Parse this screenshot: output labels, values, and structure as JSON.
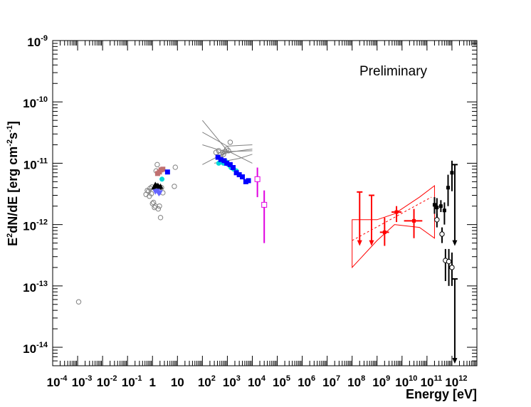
{
  "chart_data": {
    "type": "scatter",
    "title": "",
    "annotation": "Preliminary",
    "xlabel": "Energy [eV]",
    "ylabel_parts": {
      "a": "E",
      "b": "2",
      "c": "dN/dE [erg cm",
      "d": "-2",
      "e": "s",
      "f": "-1",
      "g": "]"
    },
    "xscale": "log",
    "yscale": "log",
    "xlim": [
      0.0001,
      10000000000000.0
    ],
    "ylim": [
      5e-15,
      1e-09
    ],
    "grid": false,
    "legend": "none",
    "x_ticks": [
      {
        "value": 0.0001,
        "base": "10",
        "exp": "-4"
      },
      {
        "value": 0.001,
        "base": "10",
        "exp": "-3"
      },
      {
        "value": 0.01,
        "base": "10",
        "exp": "-2"
      },
      {
        "value": 0.1,
        "base": "10",
        "exp": "-1"
      },
      {
        "value": 1,
        "base": "1",
        "exp": ""
      },
      {
        "value": 10,
        "base": "10",
        "exp": ""
      },
      {
        "value": 100,
        "base": "10",
        "exp": "2"
      },
      {
        "value": 1000,
        "base": "10",
        "exp": "3"
      },
      {
        "value": 10000,
        "base": "10",
        "exp": "4"
      },
      {
        "value": 100000,
        "base": "10",
        "exp": "5"
      },
      {
        "value": 1000000,
        "base": "10",
        "exp": "6"
      },
      {
        "value": 10000000,
        "base": "10",
        "exp": "7"
      },
      {
        "value": 100000000,
        "base": "10",
        "exp": "8"
      },
      {
        "value": 1000000000,
        "base": "10",
        "exp": "9"
      },
      {
        "value": 10000000000,
        "base": "10",
        "exp": "10"
      },
      {
        "value": 100000000000,
        "base": "10",
        "exp": "11"
      },
      {
        "value": 1000000000000,
        "base": "10",
        "exp": "12"
      }
    ],
    "y_ticks": [
      {
        "value": 1e-14,
        "base": "10",
        "exp": "-14"
      },
      {
        "value": 1e-13,
        "base": "10",
        "exp": "-13"
      },
      {
        "value": 1e-12,
        "base": "10",
        "exp": "-12"
      },
      {
        "value": 1e-11,
        "base": "10",
        "exp": "-11"
      },
      {
        "value": 1e-10,
        "base": "10",
        "exp": "-10"
      },
      {
        "value": 1e-09,
        "base": "10",
        "exp": "-9"
      }
    ],
    "colors": {
      "gray": "#808080",
      "black": "#000000",
      "red": "#ff0000",
      "blue": "#0000ff",
      "slateblue": "#6464ff",
      "rosybrown": "#c07070",
      "cyan": "#00d8d8",
      "magenta": "#e000e0"
    },
    "series": [
      {
        "color": "#808080",
        "marker": "open-circle",
        "points": [
          [
            0.0011,
            5.5e-14
          ],
          [
            0.55,
            3.1e-12
          ],
          [
            0.62,
            3.6e-12
          ],
          [
            0.7,
            3.5e-12
          ],
          [
            0.75,
            2.9e-12
          ],
          [
            0.8,
            3.9e-12
          ],
          [
            0.9,
            3.2e-12
          ],
          [
            0.95,
            4.1e-12
          ],
          [
            1.0,
            2.2e-12
          ],
          [
            1.1,
            2.3e-12
          ],
          [
            1.2,
            1.9e-12
          ],
          [
            1.3,
            2e-12
          ],
          [
            1.4,
            7.5e-12
          ],
          [
            1.55,
            9.5e-12
          ],
          [
            1.7,
            1.8e-12
          ],
          [
            1.9,
            2e-12
          ],
          [
            2.1,
            1.3e-12
          ],
          [
            2.3,
            4e-12
          ],
          [
            2.6,
            3.3e-12
          ],
          [
            7.5,
            4.2e-12
          ],
          [
            8.2,
            8.6e-12
          ],
          [
            350,
            1.5e-11
          ],
          [
            450,
            1.6e-11
          ],
          [
            550,
            1.4e-11
          ],
          [
            650,
            1.5e-11
          ],
          [
            700,
            1.4e-11
          ],
          [
            800,
            1.55e-11
          ],
          [
            950,
            1.7e-11
          ],
          [
            1100,
            1.6e-11
          ],
          [
            1300,
            2.2e-11
          ]
        ]
      },
      {
        "color": "#000000",
        "marker": "triangle",
        "points": [
          [
            1.15,
            4.1e-12
          ],
          [
            1.3,
            4.5e-12
          ],
          [
            1.45,
            4.3e-12
          ],
          [
            1.65,
            4.35e-12
          ],
          [
            1.85,
            4.1e-12
          ],
          [
            2.1,
            4.2e-12
          ]
        ]
      },
      {
        "color": "#6464ff",
        "marker": "triangle-down",
        "points": [
          [
            1.3,
            3.4e-12
          ],
          [
            1.55,
            3.5e-12
          ],
          [
            1.8,
            3.2e-12
          ],
          [
            2.0,
            3.3e-12
          ]
        ]
      },
      {
        "color": "#c07070",
        "marker": "square",
        "points": [
          [
            1.6,
            6.8e-12
          ],
          [
            1.9,
            7.2e-12
          ],
          [
            2.2,
            7.8e-12
          ],
          [
            2.6,
            8e-12
          ]
        ]
      },
      {
        "color": "#00d8d8",
        "marker": "circle",
        "points": [
          [
            2.4,
            5.5e-12
          ],
          [
            450,
            1e-11
          ],
          [
            550,
            1.05e-11
          ],
          [
            700,
            1e-11
          ],
          [
            900,
            1.05e-11
          ],
          [
            1100,
            9.5e-12
          ],
          [
            1400,
            8.5e-12
          ],
          [
            1800,
            8e-12
          ],
          [
            2300,
            7.5e-12
          ]
        ]
      },
      {
        "color": "#0000ff",
        "marker": "square",
        "points": [
          [
            4.0,
            7.2e-12
          ],
          [
            420,
            1.25e-11
          ],
          [
            550,
            1.15e-11
          ],
          [
            750,
            1.1e-11
          ],
          [
            950,
            1e-11
          ],
          [
            1300,
            9.5e-12
          ],
          [
            1700,
            8.5e-12
          ],
          [
            2300,
            7e-12
          ],
          [
            3000,
            6.5e-12
          ],
          [
            4000,
            6e-12
          ],
          [
            5500,
            5e-12
          ],
          [
            7000,
            5.2e-12
          ]
        ]
      },
      {
        "color": "#e000e0",
        "marker": "open-square",
        "points": [
          [
            16000,
            5.5e-12,
            2.8e-12,
            8.5e-12
          ],
          [
            30000,
            2.1e-12,
            5e-13,
            3.6e-12
          ]
        ]
      },
      {
        "color": "#ff0000",
        "marker": "upper-limit",
        "points": [
          [
            200000000.0,
            3.4e-12,
            5e-13
          ],
          [
            600000000.0,
            3e-12,
            5e-13
          ]
        ]
      },
      {
        "color": "#ff0000",
        "marker": "cross",
        "points": [
          [
            2000000000.0,
            7.5e-13,
            4.5e-13,
            1.3e-12,
            1300000000.0,
            3000000000.0
          ],
          [
            6000000000.0,
            1.6e-12,
            1.1e-12,
            2e-12,
            3800000000.0,
            9500000000.0
          ],
          [
            30000000000.0,
            1.15e-12,
            6e-13,
            1.8e-12,
            12000000000.0,
            65000000000.0
          ]
        ]
      },
      {
        "color": "#000000",
        "marker": "filled-circle-err",
        "points": [
          [
            200000000000.0,
            2.1e-12,
            1.5e-12,
            2.8e-12
          ],
          [
            250000000000.0,
            1.9e-12,
            1.3e-12,
            2.7e-12
          ],
          [
            360000000000.0,
            2e-12,
            1.6e-12,
            2.5e-12
          ],
          [
            500000000000.0,
            1.7e-12,
            1e-12,
            2.3e-12
          ],
          [
            700000000000.0,
            4e-12,
            2e-12,
            6.5e-12
          ],
          [
            1000000000000.0,
            7e-12,
            3.5e-12,
            1.1e-11
          ]
        ]
      },
      {
        "color": "#000000",
        "marker": "open-circle-err",
        "points": [
          [
            250000000000.0,
            1.2e-12,
            9e-13,
            1.5e-12
          ],
          [
            400000000000.0,
            7e-13,
            5e-13,
            9e-13
          ],
          [
            550000000000.0,
            2.6e-13,
            1.2e-13,
            4e-13
          ],
          [
            750000000000.0,
            2.5e-13,
            1e-13,
            4e-13
          ],
          [
            1000000000000.0,
            2e-13,
            1e-13,
            3.5e-13
          ]
        ]
      },
      {
        "color": "#000000",
        "marker": "upper-limit",
        "points": [
          [
            1300000000000.0,
            9.5e-12,
            5e-13
          ],
          [
            1300000000000.0,
            1.3e-13,
            6e-15
          ]
        ]
      }
    ],
    "fit_line": {
      "color": "#ff0000",
      "style": "dashed",
      "points": [
        [
          100000000.0,
          5.5e-13
        ],
        [
          150000000000.0,
          2.8e-12
        ]
      ]
    },
    "butterfly_red": {
      "color": "#ff0000",
      "upper": [
        [
          100000000.0,
          1.2e-12
        ],
        [
          1000000000.0,
          1.2e-12
        ],
        [
          5000000000.0,
          1.5e-12
        ],
        [
          50000000000.0,
          2.8e-12
        ],
        [
          200000000000.0,
          4.3e-12
        ]
      ],
      "lower": [
        [
          100000000.0,
          2e-13
        ],
        [
          1000000000.0,
          5.5e-13
        ],
        [
          5000000000.0,
          1e-12
        ],
        [
          50000000000.0,
          9e-13
        ],
        [
          200000000000.0,
          6e-13
        ]
      ]
    },
    "butterfly_gray": {
      "color": "#808080",
      "lines": [
        [
          [
            100,
            5e-11
          ],
          [
            1000,
            1.6e-11
          ],
          [
            10000,
            1e-11
          ]
        ],
        [
          [
            100,
            3.2e-11
          ],
          [
            1000,
            1.9e-11
          ],
          [
            10000,
            2e-11
          ]
        ],
        [
          [
            100,
            2e-11
          ],
          [
            1000,
            1.5e-11
          ],
          [
            10000,
            1.7e-11
          ]
        ],
        [
          [
            100,
            9.5e-12
          ],
          [
            1000,
            1.55e-11
          ],
          [
            10000,
            1.6e-11
          ]
        ],
        [
          [
            300,
            1e-11
          ],
          [
            3000,
            1.2e-11
          ],
          [
            10000,
            1.4e-11
          ]
        ]
      ]
    }
  }
}
